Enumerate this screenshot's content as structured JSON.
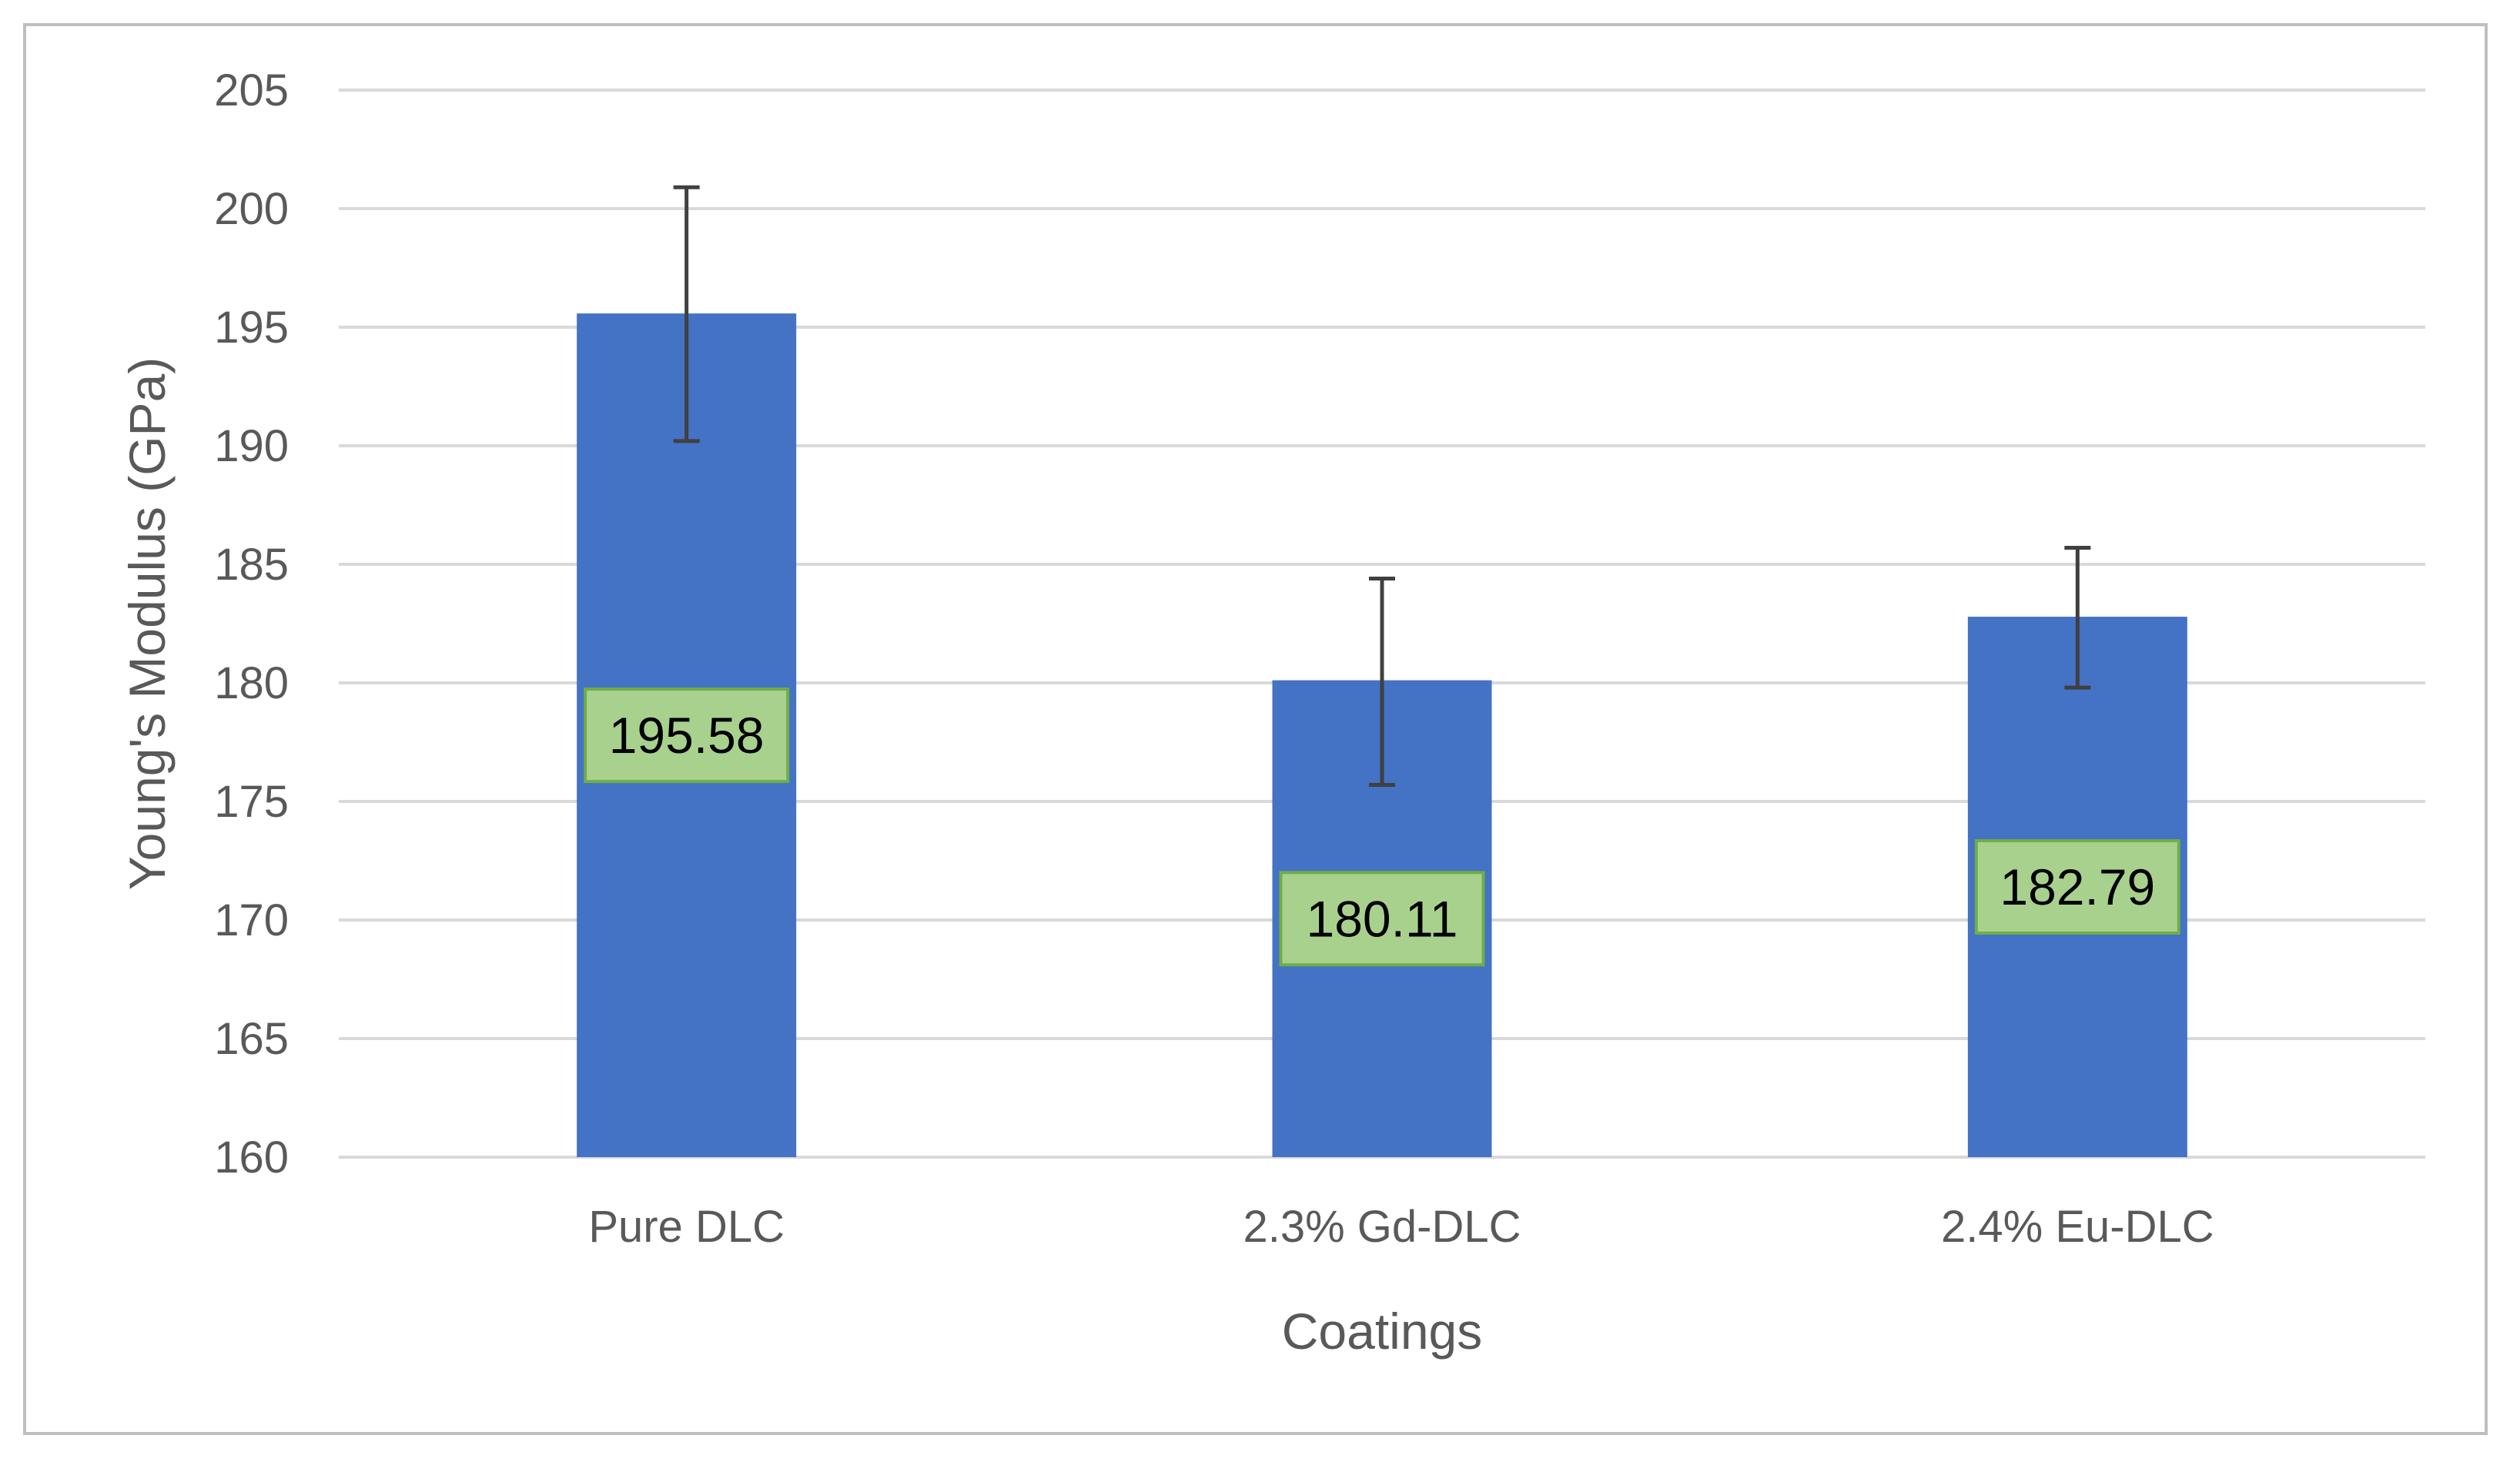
{
  "chart_data": {
    "type": "bar",
    "title": "",
    "xlabel": "Coatings",
    "ylabel": "Young's Modulus (GPa)",
    "ylim": [
      160,
      205
    ],
    "yticks": [
      160,
      165,
      170,
      175,
      180,
      185,
      190,
      195,
      200,
      205
    ],
    "categories": [
      "Pure DLC",
      "2.3% Gd-DLC",
      "2.4% Eu-DLC"
    ],
    "values": [
      195.58,
      180.11,
      182.79
    ],
    "data_labels": [
      "195.58",
      "180.11",
      "182.79"
    ],
    "error_bars": {
      "upper": [
        200.9,
        184.4,
        185.7
      ],
      "lower": [
        190.2,
        175.7,
        179.8
      ]
    },
    "grid": true,
    "legend": "none",
    "colors": {
      "bar": "#4472c4",
      "label_fill": "#a9d18e",
      "label_border": "#70ad47",
      "gridline": "#d9d9d9",
      "error_bar": "#404040",
      "text": "#595959"
    }
  }
}
